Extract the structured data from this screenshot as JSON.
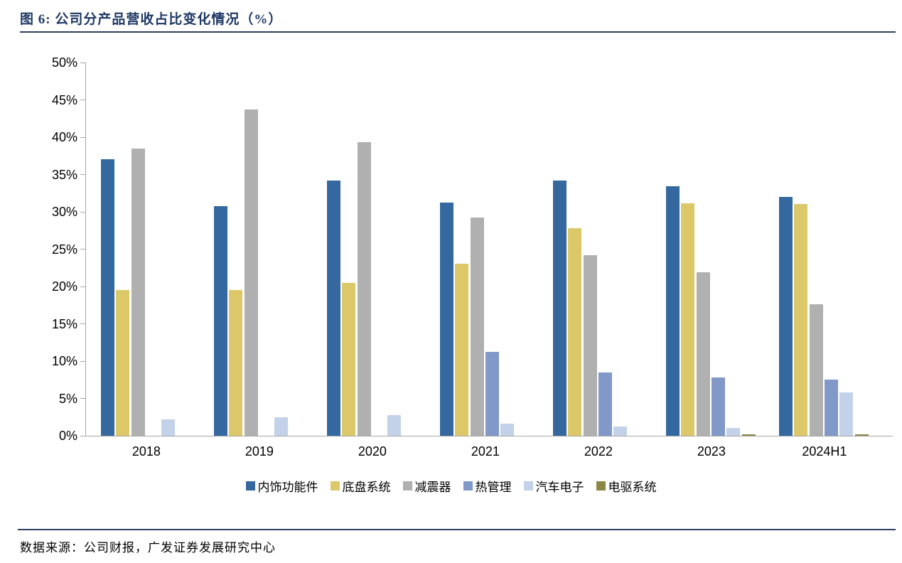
{
  "header": {
    "title": "图 6:  公司分产品营收占比变化情况（%）"
  },
  "source": {
    "label": "数据来源：公司财报，广发证券发展研究中心"
  },
  "chart_data": {
    "type": "bar",
    "title": "公司分产品营收占比变化情况（%）",
    "categories": [
      "2018",
      "2019",
      "2020",
      "2021",
      "2022",
      "2023",
      "2024H1"
    ],
    "series": [
      {
        "name": "内饰功能件",
        "color": "#35689F",
        "values": [
          37.0,
          30.8,
          34.2,
          31.2,
          34.2,
          33.4,
          32.0
        ]
      },
      {
        "name": "底盘系统",
        "color": "#DCC868",
        "values": [
          19.5,
          19.5,
          20.5,
          23.0,
          27.8,
          31.1,
          31.0
        ]
      },
      {
        "name": "减震器",
        "color": "#B0B0B0",
        "values": [
          38.5,
          43.7,
          39.3,
          29.2,
          24.2,
          21.9,
          17.6
        ]
      },
      {
        "name": "热管理",
        "color": "#8199C8",
        "values": [
          0,
          0,
          0,
          11.2,
          8.5,
          7.8,
          7.5
        ]
      },
      {
        "name": "汽车电子",
        "color": "#C3D1E9",
        "values": [
          2.2,
          2.5,
          2.8,
          1.6,
          1.2,
          1.0,
          5.8
        ]
      },
      {
        "name": "电驱系统",
        "color": "#8D8747",
        "values": [
          0,
          0,
          0,
          0,
          0,
          0.15,
          0.2
        ]
      }
    ],
    "ylim": [
      0,
      50
    ],
    "ytick_step": 5,
    "ytick_labels": [
      "0%",
      "5%",
      "10%",
      "15%",
      "20%",
      "25%",
      "30%",
      "35%",
      "40%",
      "45%",
      "50%"
    ],
    "xlabel": "",
    "ylabel": "",
    "grid": false,
    "legend_position": "bottom"
  }
}
